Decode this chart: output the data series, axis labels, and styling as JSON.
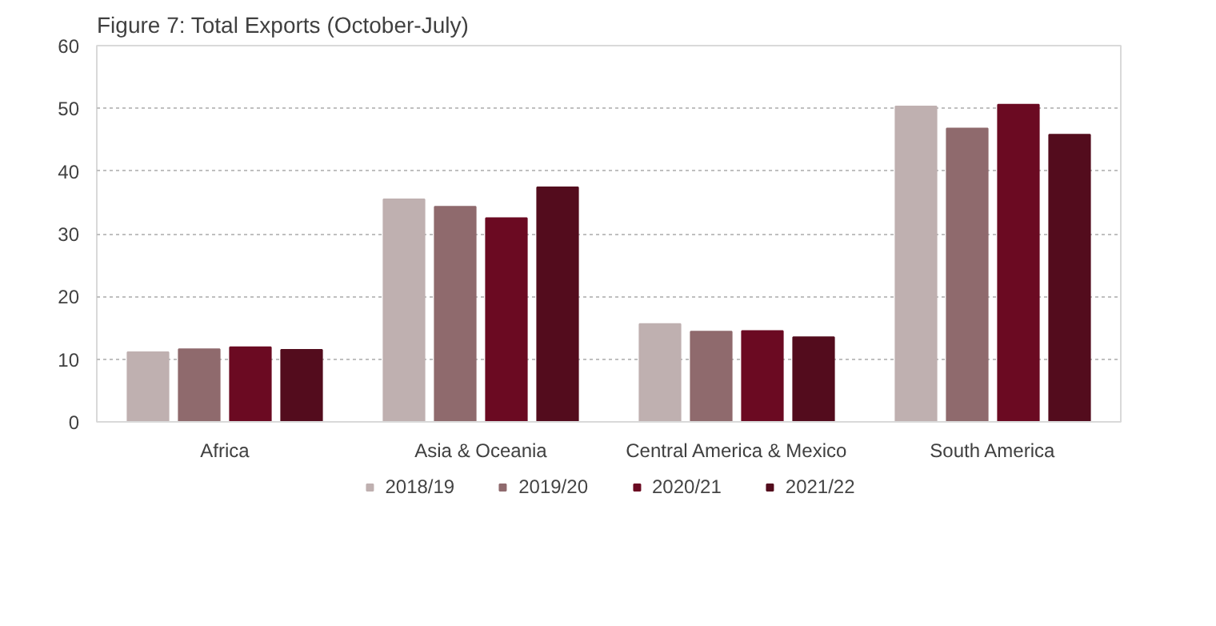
{
  "chart_data": {
    "type": "bar",
    "title": "Figure 7: Total Exports (October-July)",
    "categories": [
      "Africa",
      "Asia & Oceania",
      "Central America & Mexico",
      "South America"
    ],
    "series": [
      {
        "name": "2018/19",
        "color": "#bfb0b0",
        "values": [
          11.1,
          35.5,
          15.6,
          50.3
        ]
      },
      {
        "name": "2019/20",
        "color": "#8f6a6d",
        "values": [
          11.6,
          34.3,
          14.4,
          46.8
        ]
      },
      {
        "name": "2020/21",
        "color": "#6b0a22",
        "values": [
          11.9,
          32.5,
          14.5,
          50.6
        ]
      },
      {
        "name": "2021/22",
        "color": "#530c1d",
        "values": [
          11.5,
          37.4,
          13.5,
          45.8
        ]
      }
    ],
    "ylim": [
      0,
      60
    ],
    "yticks": [
      0,
      10,
      20,
      30,
      40,
      50,
      60
    ],
    "grid": "y",
    "legend": "bottom"
  }
}
